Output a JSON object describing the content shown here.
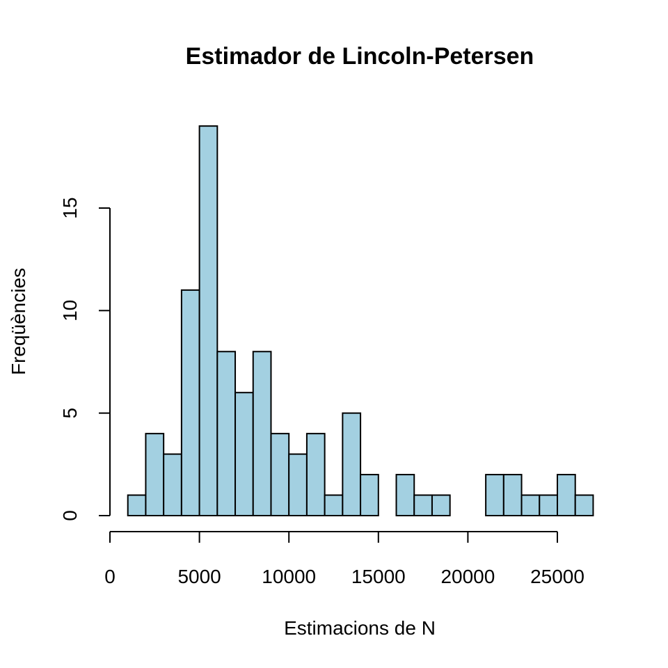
{
  "chart_data": {
    "type": "bar",
    "title": "Estimador de Lincoln-Petersen",
    "xlabel": "Estimacions de N",
    "ylabel": "Freqüències",
    "bin_edges": [
      1000,
      2000,
      3000,
      4000,
      5000,
      6000,
      7000,
      8000,
      9000,
      10000,
      11000,
      12000,
      13000,
      14000,
      15000,
      16000,
      17000,
      18000,
      19000,
      20000,
      21000,
      22000,
      23000,
      24000,
      25000,
      26000,
      27000
    ],
    "values": [
      1,
      4,
      3,
      11,
      19,
      8,
      6,
      8,
      4,
      3,
      4,
      1,
      5,
      2,
      0,
      2,
      1,
      1,
      0,
      0,
      2,
      2,
      1,
      1,
      2,
      1
    ],
    "xlim": [
      0,
      27000
    ],
    "ylim": [
      0,
      19
    ],
    "x_ticks": [
      0,
      5000,
      10000,
      15000,
      20000,
      25000
    ],
    "y_ticks": [
      0,
      5,
      10,
      15
    ],
    "bar_color": "#a3d0e1",
    "grid": false
  }
}
